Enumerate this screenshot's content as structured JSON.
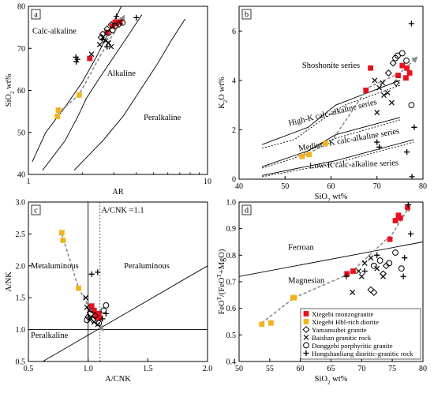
{
  "chart_data": [
    {
      "panel": "a",
      "type": "scatter",
      "xlabel": "AR",
      "ylabel": "SiO2 wt%",
      "xscale": "log",
      "xlim": [
        1,
        10
      ],
      "ylim": [
        40,
        80
      ],
      "xticks": [
        "1",
        "10"
      ],
      "yticks": [
        "40",
        "50",
        "60",
        "70",
        "80"
      ],
      "field_labels": [
        "Calc-alkaline",
        "Alkaline",
        "Peralkaline"
      ],
      "series": [
        {
          "name": "Xiegebi Hbl-rich diorite",
          "points": [
            [
              1.45,
              53.8
            ],
            [
              1.47,
              55.3
            ],
            [
              1.92,
              58.9
            ]
          ]
        },
        {
          "name": "Xiegebi monzogranite",
          "points": [
            [
              2.2,
              67.6
            ],
            [
              2.75,
              73.8
            ],
            [
              2.95,
              75.3
            ],
            [
              3.1,
              75.9
            ],
            [
              3.25,
              76.3
            ],
            [
              3.05,
              76.2
            ]
          ]
        },
        {
          "name": "Hongshanliang dioritic-granitic rock",
          "points": [
            [
              1.85,
              66.8
            ],
            [
              1.88,
              67.4
            ],
            [
              1.84,
              67.9
            ],
            [
              3.1,
              77.6
            ],
            [
              4.0,
              77.3
            ],
            [
              2.6,
              72.1
            ],
            [
              2.75,
              70.4
            ]
          ]
        },
        {
          "name": "Baishan granitic rock",
          "points": [
            [
              2.25,
              68.6
            ],
            [
              2.5,
              70.9
            ],
            [
              2.6,
              72.6
            ],
            [
              2.7,
              71.8
            ],
            [
              2.8,
              71.3
            ],
            [
              2.9,
              70.4
            ]
          ]
        },
        {
          "name": "Yamansubei granite",
          "points": [
            [
              2.6,
              73.4
            ],
            [
              2.75,
              74.6
            ],
            [
              2.9,
              75.6
            ],
            [
              3.2,
              75.7
            ],
            [
              2.55,
              72.6
            ]
          ]
        },
        {
          "name": "Donggebi porphyritic granite",
          "points": [
            [
              2.8,
              73.7
            ],
            [
              2.95,
              74.3
            ],
            [
              3.05,
              75.4
            ],
            [
              3.35,
              76.1
            ]
          ]
        }
      ]
    },
    {
      "panel": "b",
      "type": "scatter",
      "xlabel": "SiO2 wt%",
      "ylabel": "K2O wt%",
      "xlim": [
        40,
        80
      ],
      "ylim": [
        0,
        7
      ],
      "xticks": [
        "40",
        "50",
        "60",
        "70",
        "80"
      ],
      "yticks": [
        "0",
        "2",
        "4",
        "6"
      ],
      "field_labels": [
        "Shoshonite series",
        "High-K calc-alkaline series",
        "Medium-K calc-alkaline series",
        "Low-K calc-alkaline series"
      ],
      "series": [
        {
          "name": "Xiegebi Hbl-rich diorite",
          "points": [
            [
              53.7,
              0.92
            ],
            [
              55.2,
              1.0
            ],
            [
              58.8,
              1.45
            ]
          ]
        },
        {
          "name": "Xiegebi monzogranite",
          "points": [
            [
              67.6,
              3.6
            ],
            [
              68.6,
              4.5
            ],
            [
              74.6,
              4.2
            ],
            [
              75.5,
              4.6
            ],
            [
              76.3,
              4.1
            ],
            [
              77.1,
              4.3
            ],
            [
              76.5,
              4.5
            ]
          ]
        },
        {
          "name": "Hongshanliang dioritic-granitic rock",
          "points": [
            [
              70.0,
              1.5
            ],
            [
              70.5,
              1.3
            ],
            [
              77.5,
              6.3
            ],
            [
              76.5,
              1.1
            ],
            [
              77.6,
              0.1
            ],
            [
              78.1,
              2.1
            ]
          ]
        },
        {
          "name": "Baishan granitic rock",
          "points": [
            [
              69.5,
              4.0
            ],
            [
              70.5,
              3.7
            ],
            [
              71.5,
              3.4
            ],
            [
              72.3,
              3.5
            ],
            [
              73.2,
              3.1
            ],
            [
              70.0,
              2.7
            ],
            [
              71.2,
              3.9
            ]
          ]
        },
        {
          "name": "Yamansubei granite",
          "points": [
            [
              72.5,
              4.3
            ],
            [
              73.5,
              4.7
            ],
            [
              74.2,
              3.9
            ]
          ]
        },
        {
          "name": "Donggebi porphyritic granite",
          "points": [
            [
              74.5,
              5.0
            ],
            [
              75.5,
              5.1
            ],
            [
              76.4,
              4.8
            ],
            [
              74.0,
              4.9
            ],
            [
              77.5,
              3.0
            ]
          ]
        }
      ]
    },
    {
      "panel": "c",
      "type": "scatter",
      "xlabel": "A/CNK",
      "ylabel": "A/NK",
      "xlim": [
        0.5,
        2.0
      ],
      "ylim": [
        0.5,
        3.0
      ],
      "xticks": [
        "0.5",
        "1.0",
        "1.5",
        "2.0"
      ],
      "yticks": [
        "0.5",
        "1.0",
        "1.5",
        "2.0",
        "2.5",
        "3.0"
      ],
      "field_labels": [
        "Metaluminous",
        "Peraluminous",
        "Peralkaline"
      ],
      "annotations": [
        "A/CNK =1.1"
      ],
      "series": [
        {
          "name": "Xiegebi Hbl-rich diorite",
          "points": [
            [
              0.78,
              2.52
            ],
            [
              0.79,
              2.4
            ],
            [
              0.92,
              1.65
            ]
          ]
        },
        {
          "name": "Xiegebi monzogranite",
          "points": [
            [
              1.03,
              1.37
            ],
            [
              1.05,
              1.3
            ],
            [
              1.07,
              1.23
            ],
            [
              1.09,
              1.25
            ],
            [
              1.1,
              1.18
            ],
            [
              1.08,
              1.2
            ]
          ]
        },
        {
          "name": "Hongshanliang dioritic-granitic rock",
          "points": [
            [
              1.03,
              1.87
            ],
            [
              1.08,
              1.9
            ],
            [
              1.12,
              1.17
            ],
            [
              1.15,
              1.25
            ]
          ]
        },
        {
          "name": "Baishan granitic rock",
          "points": [
            [
              0.98,
              1.5
            ],
            [
              0.99,
              1.35
            ],
            [
              1.01,
              1.3
            ],
            [
              1.02,
              1.18
            ],
            [
              1.05,
              1.12
            ],
            [
              1.08,
              1.08
            ]
          ]
        },
        {
          "name": "Yamansubei granite",
          "points": [
            [
              1.0,
              1.2
            ],
            [
              1.04,
              1.15
            ],
            [
              1.06,
              1.22
            ]
          ]
        },
        {
          "name": "Donggebi porphyritic granite",
          "points": [
            [
              1.15,
              1.38
            ],
            [
              1.02,
              1.25
            ],
            [
              1.09,
              1.1
            ],
            [
              1.13,
              1.3
            ],
            [
              0.99,
              1.15
            ]
          ]
        }
      ]
    },
    {
      "panel": "d",
      "type": "scatter",
      "xlabel": "SiO2 wt%",
      "ylabel": "FeOT/(FeOT+MgO)",
      "xlim": [
        50,
        80
      ],
      "ylim": [
        0.4,
        1.0
      ],
      "xticks": [
        "50",
        "55",
        "60",
        "65",
        "70",
        "75",
        "80"
      ],
      "yticks": [
        "0.4",
        "0.5",
        "0.6",
        "0.7",
        "0.8",
        "0.9",
        "1.0"
      ],
      "field_labels": [
        "Ferroan",
        "Magnesian"
      ],
      "series": [
        {
          "name": "Xiegebi Hbl-rich diorite",
          "points": [
            [
              53.7,
              0.54
            ],
            [
              55.2,
              0.545
            ],
            [
              58.8,
              0.64
            ],
            [
              59.0,
              0.64
            ]
          ]
        },
        {
          "name": "Xiegebi monzogranite",
          "points": [
            [
              67.6,
              0.73
            ],
            [
              68.6,
              0.74
            ],
            [
              74.6,
              0.86
            ],
            [
              75.5,
              0.93
            ],
            [
              76.0,
              0.95
            ],
            [
              76.3,
              0.94
            ],
            [
              77.5,
              0.98
            ]
          ]
        },
        {
          "name": "Hongshanliang dioritic-granitic rock",
          "points": [
            [
              67.5,
              0.72
            ],
            [
              70.5,
              0.74
            ],
            [
              77.6,
              0.99
            ],
            [
              72.5,
              0.8
            ],
            [
              76.8,
              0.72
            ],
            [
              77.0,
              0.79
            ],
            [
              78.0,
              0.88
            ]
          ]
        },
        {
          "name": "Baishan granitic rock",
          "points": [
            [
              68.5,
              0.66
            ],
            [
              69.5,
              0.74
            ],
            [
              70.5,
              0.77
            ],
            [
              71.5,
              0.79
            ],
            [
              72.5,
              0.75
            ],
            [
              73.5,
              0.72
            ],
            [
              70.0,
              0.72
            ]
          ]
        },
        {
          "name": "Yamansubei granite",
          "points": [
            [
              71.5,
              0.67
            ],
            [
              72.0,
              0.66
            ],
            [
              73.5,
              0.73
            ],
            [
              74.0,
              0.76
            ]
          ]
        },
        {
          "name": "Donggebi porphyritic granite",
          "points": [
            [
              74.5,
              0.77
            ],
            [
              75.5,
              0.81
            ],
            [
              76.5,
              0.75
            ],
            [
              72.0,
              0.76
            ],
            [
              73.0,
              0.78
            ]
          ]
        }
      ]
    }
  ],
  "legend": {
    "items": [
      {
        "label": "Xiegebi monzogranite",
        "marker": "filled-square-red"
      },
      {
        "label": "Xiegebi Hbl-rich diorite",
        "marker": "filled-square-yellow"
      },
      {
        "label": "Yamansubei granite",
        "marker": "open-diamond"
      },
      {
        "label": "Baishan granitic rock",
        "marker": "x-cross"
      },
      {
        "label": "Donggebi porphyritic granite",
        "marker": "open-circle"
      },
      {
        "label": "Hongshanliang dioritic-granitic rock",
        "marker": "plus"
      }
    ]
  },
  "colors": {
    "monzogranite": "#e8111d",
    "diorite": "#f2b31d",
    "trend_arrow": "#8c8c8c",
    "axis": "#000000"
  }
}
